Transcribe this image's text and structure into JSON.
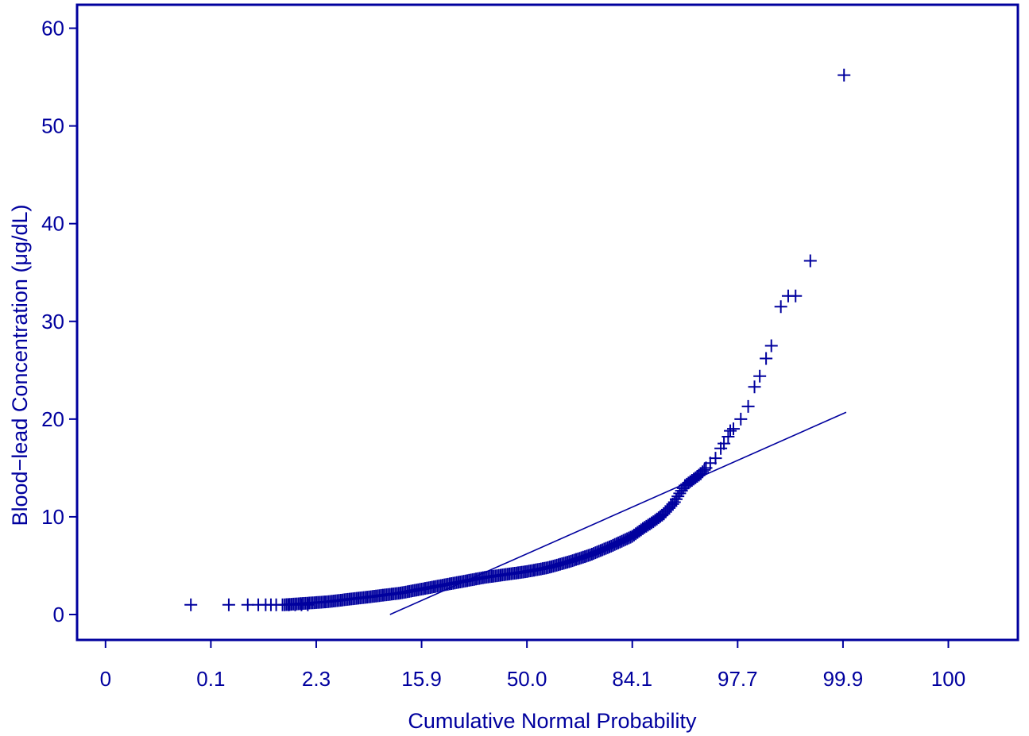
{
  "chart_data": {
    "type": "scatter",
    "title": "",
    "xlabel": "Cumulative Normal Probability",
    "ylabel": "Blood−lead Concentration (μg/dL)",
    "x_scale": "probit",
    "x_ticks": [
      {
        "z": -4,
        "label": "0"
      },
      {
        "z": -3,
        "label": "0.1"
      },
      {
        "z": -2,
        "label": "2.3"
      },
      {
        "z": -1,
        "label": "15.9"
      },
      {
        "z": 0,
        "label": "50.0"
      },
      {
        "z": 1,
        "label": "84.1"
      },
      {
        "z": 2,
        "label": "97.7"
      },
      {
        "z": 3,
        "label": "99.9"
      },
      {
        "z": 4,
        "label": "100"
      }
    ],
    "y_ticks": [
      0,
      10,
      20,
      30,
      40,
      50,
      60
    ],
    "xlim_z": [
      -4.27,
      4.66
    ],
    "ylim": [
      -2.6,
      62.4
    ],
    "colors": {
      "accent": "#00009e"
    },
    "fit_line": {
      "z": [
        -1.3,
        3.03
      ],
      "y": [
        0.0,
        20.7
      ]
    },
    "scatter_outliers": {
      "z": [
        -3.19,
        -2.83,
        -2.65,
        -2.55,
        -2.48,
        -2.43,
        -2.38,
        -2.32,
        -2.26,
        -2.2,
        -2.14,
        -2.08,
        1.74,
        1.79,
        1.84,
        1.87,
        1.91,
        1.93,
        1.96,
        2.03,
        2.1,
        2.16,
        2.21,
        2.27,
        2.32,
        2.41,
        2.48,
        2.55,
        2.69,
        3.01
      ],
      "y": [
        1.0,
        1.0,
        1.0,
        1.0,
        1.0,
        1.0,
        1.0,
        1.0,
        1.0,
        1.0,
        1.0,
        1.0,
        15.5,
        16.0,
        17.0,
        17.5,
        18.2,
        18.8,
        19.0,
        20.0,
        21.3,
        23.3,
        24.4,
        26.2,
        27.5,
        31.5,
        32.6,
        32.6,
        36.2,
        55.2
      ]
    },
    "scatter_curve": {
      "z": [
        -2.3,
        -1.9,
        -1.5,
        -1.2,
        -1.0,
        -0.8,
        -0.6,
        -0.4,
        -0.2,
        0.0,
        0.2,
        0.4,
        0.6,
        0.8,
        1.0,
        1.1,
        1.2,
        1.3,
        1.4,
        1.45,
        1.5,
        1.55,
        1.6,
        1.65,
        1.7
      ],
      "y": [
        1.0,
        1.3,
        1.8,
        2.2,
        2.6,
        3.0,
        3.4,
        3.8,
        4.1,
        4.4,
        4.8,
        5.4,
        6.1,
        7.0,
        8.0,
        8.8,
        9.5,
        10.3,
        11.5,
        12.4,
        13.2,
        13.6,
        14.0,
        14.4,
        15.0
      ]
    }
  }
}
